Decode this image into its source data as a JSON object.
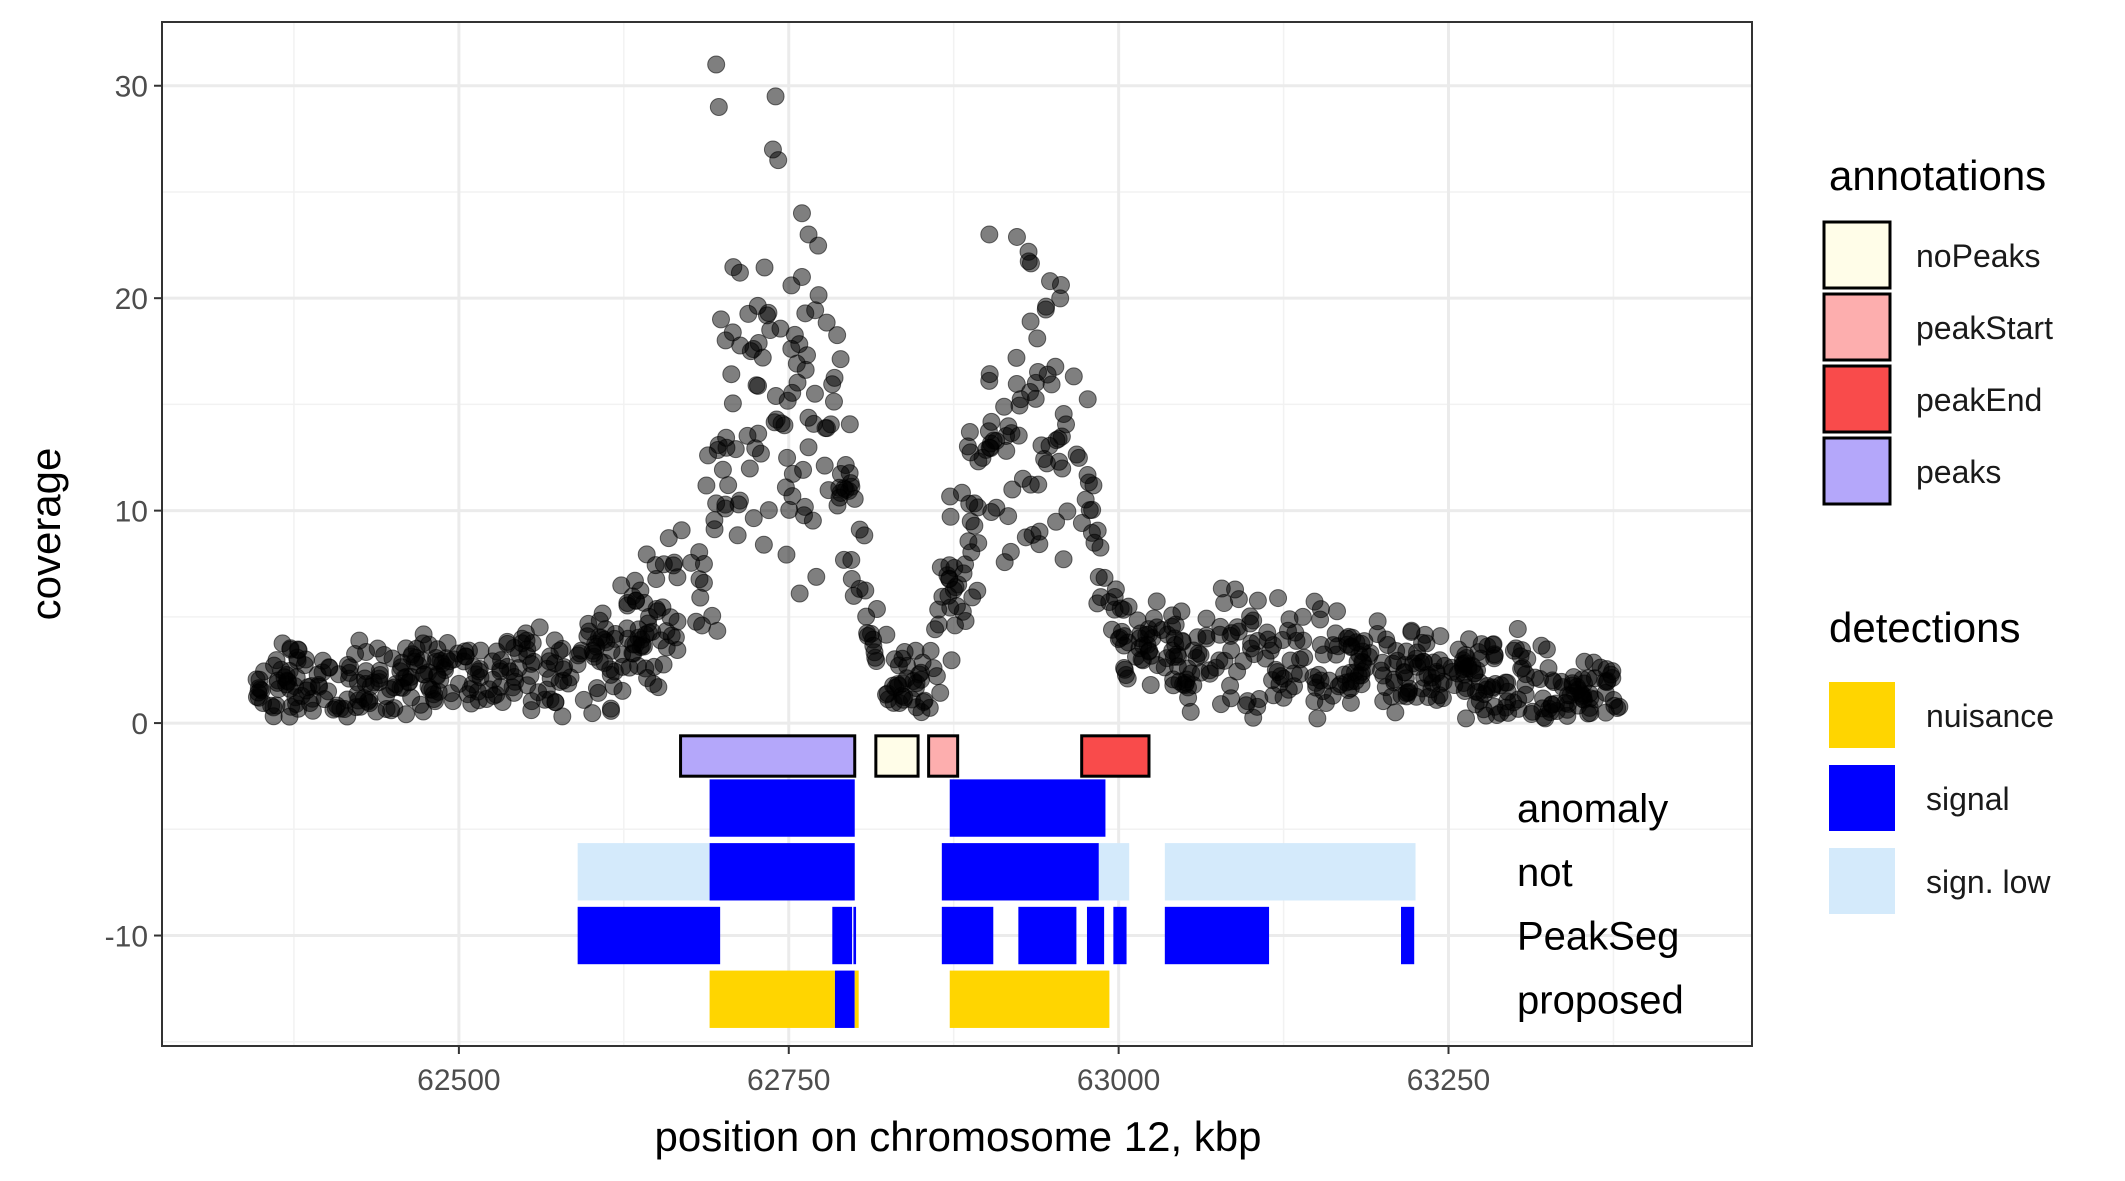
{
  "chart_data": {
    "type": "scatter",
    "xlabel": "position on chromosome 12, kbp",
    "ylabel": "coverage",
    "xlim": [
      62275,
      63480
    ],
    "ylim": [
      -15.2,
      33
    ],
    "x_ticks": [
      62500,
      62750,
      63000,
      63250
    ],
    "x_tick_labels": [
      "62500",
      "62750",
      "63000",
      "63250"
    ],
    "y_ticks": [
      -10,
      0,
      10,
      20,
      30
    ],
    "y_tick_labels": [
      "-10",
      "0",
      "10",
      "20",
      "30"
    ],
    "grid": true,
    "coverage_profile": [
      [
        62345,
        1.6
      ],
      [
        62400,
        1.7
      ],
      [
        62450,
        2.0
      ],
      [
        62500,
        2.2
      ],
      [
        62550,
        2.3
      ],
      [
        62590,
        2.6
      ],
      [
        62620,
        3.5
      ],
      [
        62650,
        4.5
      ],
      [
        62680,
        6.5
      ],
      [
        62700,
        13
      ],
      [
        62725,
        15
      ],
      [
        62750,
        13
      ],
      [
        62775,
        15
      ],
      [
        62795,
        12
      ],
      [
        62810,
        4
      ],
      [
        62830,
        2.2
      ],
      [
        62850,
        2.0
      ],
      [
        62870,
        6
      ],
      [
        62890,
        11
      ],
      [
        62920,
        14
      ],
      [
        62950,
        15
      ],
      [
        62975,
        12
      ],
      [
        62990,
        6
      ],
      [
        63005,
        3.5
      ],
      [
        63030,
        3.0
      ],
      [
        63060,
        3.5
      ],
      [
        63100,
        3.5
      ],
      [
        63150,
        3.0
      ],
      [
        63200,
        2.6
      ],
      [
        63250,
        2.2
      ],
      [
        63300,
        2.0
      ],
      [
        63340,
        1.5
      ],
      [
        63380,
        1.2
      ]
    ],
    "extreme_points": [
      [
        62695,
        31
      ],
      [
        62697,
        29
      ],
      [
        62740,
        29.5
      ],
      [
        62738,
        27
      ],
      [
        62742,
        26.5
      ],
      [
        62760,
        24
      ],
      [
        62765,
        23
      ],
      [
        62902,
        23
      ],
      [
        62948,
        20.8
      ],
      [
        62945,
        19.6
      ],
      [
        62713,
        21.2
      ],
      [
        62760,
        21
      ],
      [
        62752,
        20.6
      ]
    ],
    "annotations": [
      {
        "label": "peaks",
        "start": 62668,
        "end": 62800,
        "color": "#b4a7fa"
      },
      {
        "label": "noPeaks",
        "start": 62816,
        "end": 62848,
        "color": "#fffde8"
      },
      {
        "label": "peakStart",
        "start": 62856,
        "end": 62878,
        "color": "#fdaeae"
      },
      {
        "label": "peakEnd",
        "start": 62972,
        "end": 63023,
        "color": "#f94b4b"
      }
    ],
    "detection_rows": [
      {
        "label": "anomaly",
        "y": -4,
        "segments": [
          {
            "start": 62690,
            "end": 62800,
            "type": "signal"
          },
          {
            "start": 62872,
            "end": 62990,
            "type": "signal"
          }
        ]
      },
      {
        "label": "not",
        "y": -7,
        "segments": [
          {
            "start": 62590,
            "end": 62690,
            "type": "sign. low"
          },
          {
            "start": 62690,
            "end": 62800,
            "type": "signal"
          },
          {
            "start": 62866,
            "end": 62985,
            "type": "signal"
          },
          {
            "start": 62985,
            "end": 63008,
            "type": "sign. low"
          },
          {
            "start": 63035,
            "end": 63225,
            "type": "sign. low"
          }
        ]
      },
      {
        "label": "PeakSeg",
        "y": -10,
        "segments": [
          {
            "start": 62590,
            "end": 62685,
            "type": "signal"
          },
          {
            "start": 62685,
            "end": 62698,
            "type": "signal"
          },
          {
            "start": 62783,
            "end": 62798,
            "type": "signal"
          },
          {
            "start": 62799,
            "end": 62801,
            "type": "signal"
          },
          {
            "start": 62866,
            "end": 62905,
            "type": "signal"
          },
          {
            "start": 62924,
            "end": 62968,
            "type": "signal"
          },
          {
            "start": 62976,
            "end": 62989,
            "type": "signal"
          },
          {
            "start": 62996,
            "end": 63006,
            "type": "signal"
          },
          {
            "start": 63035,
            "end": 63114,
            "type": "signal"
          },
          {
            "start": 63214,
            "end": 63224,
            "type": "signal"
          }
        ]
      },
      {
        "label": "proposed",
        "y": -13,
        "segments": [
          {
            "start": 62690,
            "end": 62785,
            "type": "nuisance"
          },
          {
            "start": 62785,
            "end": 62800,
            "type": "signal"
          },
          {
            "start": 62800,
            "end": 62803,
            "type": "nuisance"
          },
          {
            "start": 62872,
            "end": 62993,
            "type": "nuisance"
          }
        ]
      }
    ],
    "legend_annotations": {
      "title": "annotations",
      "items": [
        {
          "label": "noPeaks",
          "color": "#fffde8"
        },
        {
          "label": "peakStart",
          "color": "#fdaeae"
        },
        {
          "label": "peakEnd",
          "color": "#f94b4b"
        },
        {
          "label": "peaks",
          "color": "#b4a7fa"
        }
      ]
    },
    "legend_detections": {
      "title": "detections",
      "items": [
        {
          "label": "nuisance",
          "color": "#ffd500"
        },
        {
          "label": "signal",
          "color": "#0000ff"
        },
        {
          "label": "sign. low",
          "color": "#d4eafb"
        }
      ]
    }
  }
}
